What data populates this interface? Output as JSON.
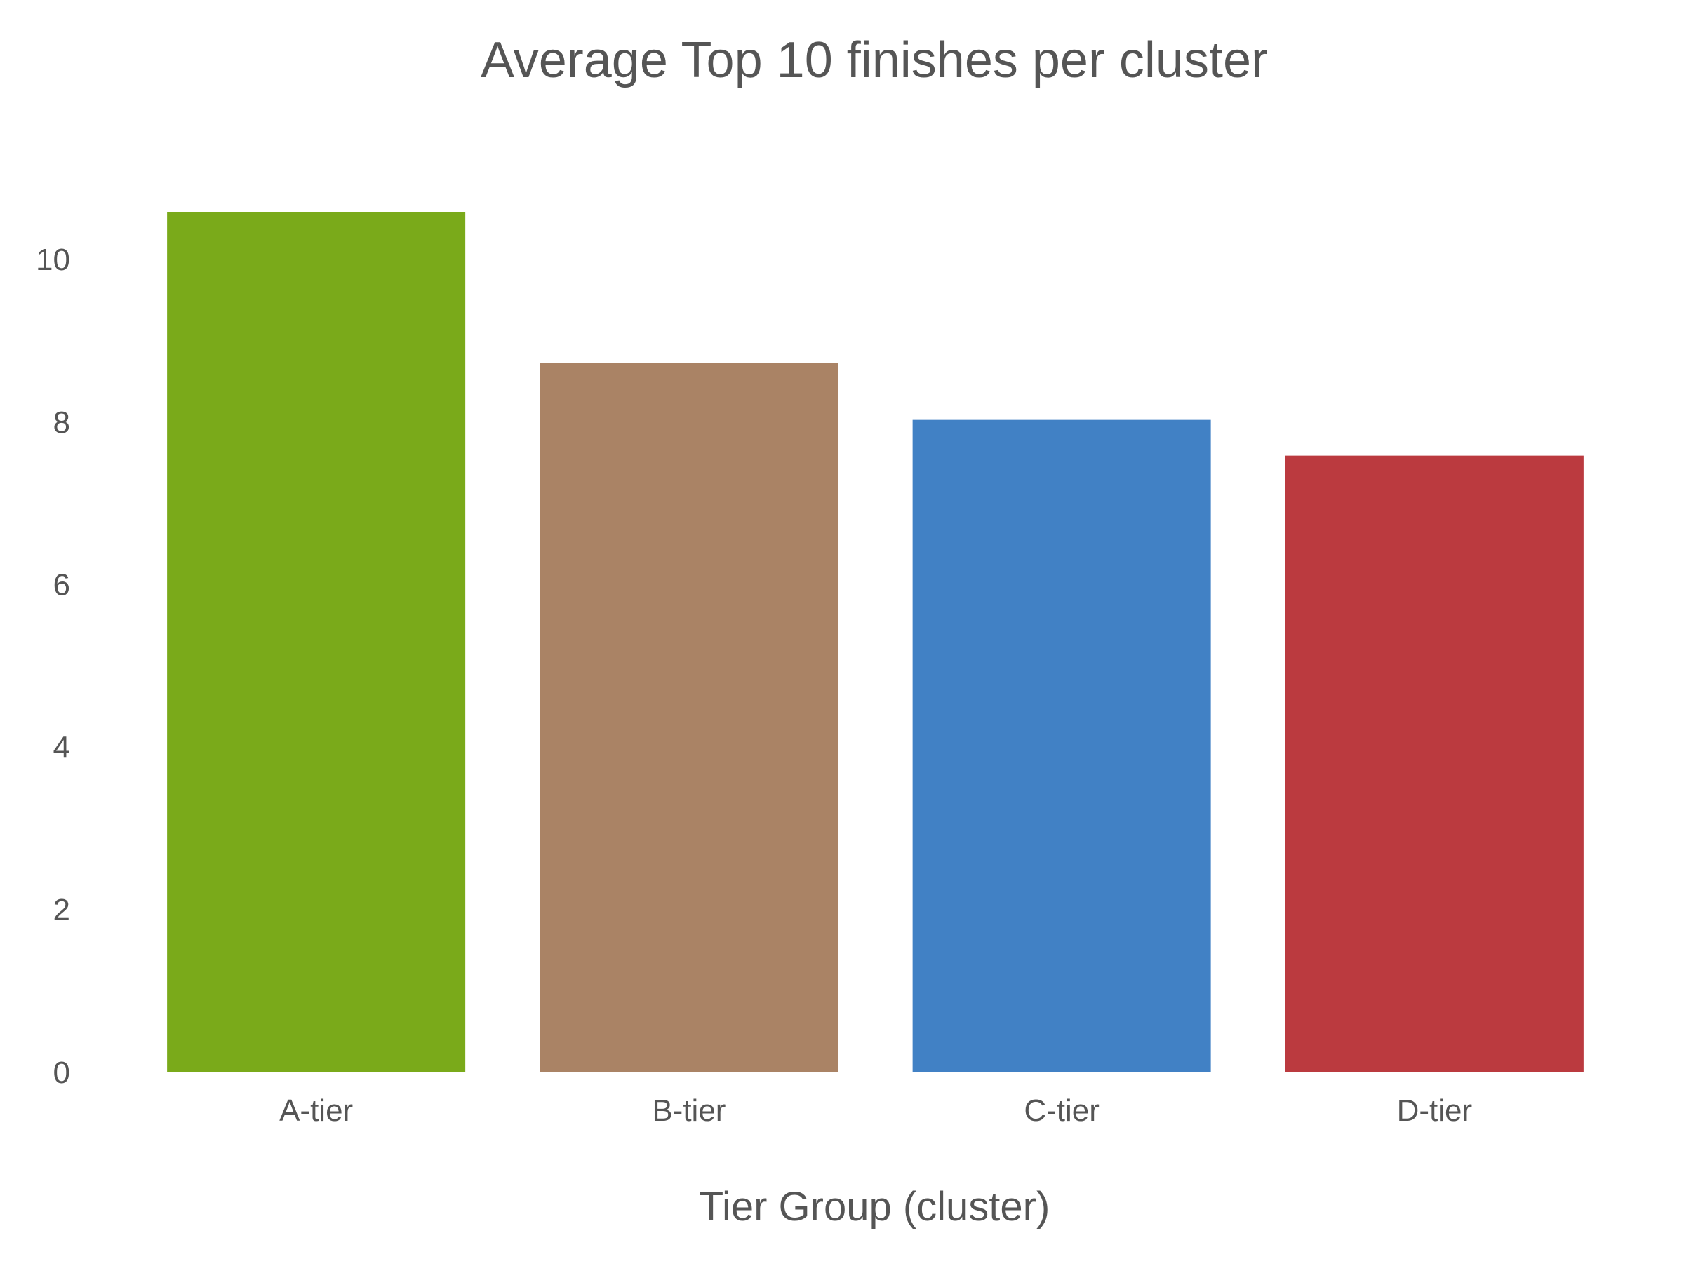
{
  "chart_data": {
    "type": "bar",
    "title": "Average Top 10 finishes per cluster",
    "xlabel": "Tier Group (cluster)",
    "ylabel": "",
    "categories": [
      "A-tier",
      "B-tier",
      "C-tier",
      "D-tier"
    ],
    "values": [
      10.58,
      8.72,
      8.02,
      7.58
    ],
    "colors": [
      "#7aaa1a",
      "#aa8365",
      "#4181c5",
      "#bb3a3f"
    ],
    "ylim": [
      0,
      10.58
    ],
    "yticks": [
      0,
      2,
      4,
      6,
      8,
      10
    ],
    "ytick_labels": [
      "0",
      "2",
      "4",
      "6",
      "8",
      "10"
    ],
    "grid": false,
    "legend": "none"
  }
}
